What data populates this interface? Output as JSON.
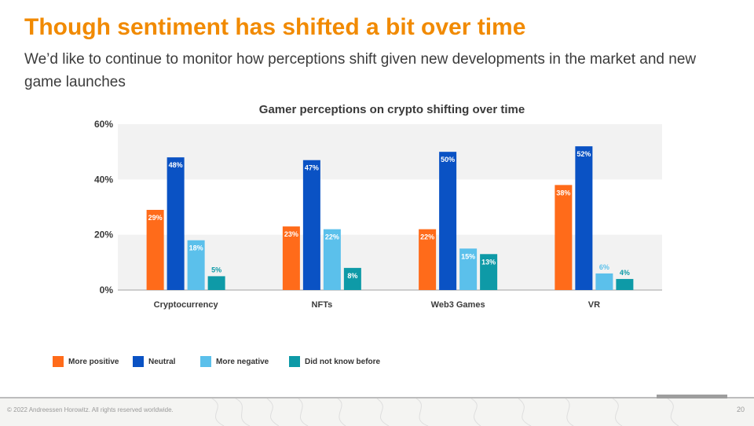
{
  "slide": {
    "title": "Though sentiment has shifted a bit over time",
    "subtitle": "We’d like to continue to monitor how perceptions shift given new developments in the market and new game launches",
    "footer": "© 2022 Andreessen Horowitz. All rights reserved worldwide.",
    "page_number": "20"
  },
  "colors": {
    "title": "#F18A00",
    "band": "#f2f2f2",
    "axis": "#bfbfbf"
  },
  "chart_data": {
    "type": "bar",
    "title": "Gamer perceptions on crypto shifting over time",
    "xlabel": "",
    "ylabel": "",
    "ylim": [
      0,
      60
    ],
    "yticks": [
      0,
      20,
      40,
      60
    ],
    "ytick_labels": [
      "0%",
      "20%",
      "40%",
      "60%"
    ],
    "categories": [
      "Cryptocurrency",
      "NFTs",
      "Web3 Games",
      "VR"
    ],
    "legend_position": "bottom-left",
    "series": [
      {
        "name": "More positive",
        "color": "#FF6B1A",
        "values": [
          29,
          23,
          22,
          38
        ],
        "labels": [
          "29%",
          "23%",
          "22%",
          "38%"
        ]
      },
      {
        "name": "Neutral",
        "color": "#0A52C4",
        "values": [
          48,
          47,
          50,
          52
        ],
        "labels": [
          "48%",
          "47%",
          "50%",
          "52%"
        ]
      },
      {
        "name": "More negative",
        "color": "#5BC0EB",
        "values": [
          18,
          22,
          15,
          6
        ],
        "labels": [
          "18%",
          "22%",
          "15%",
          "6%"
        ]
      },
      {
        "name": "Did not know before",
        "color": "#0E9AA7",
        "values": [
          5,
          8,
          13,
          4
        ],
        "labels": [
          "5%",
          "8%",
          "13%",
          "4%"
        ]
      }
    ]
  }
}
